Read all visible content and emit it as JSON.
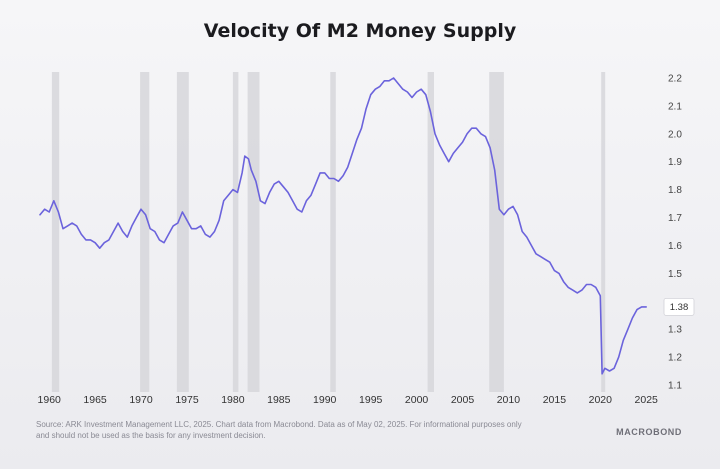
{
  "chart_data": {
    "type": "line",
    "title": "Velocity Of M2 Money Supply",
    "xlabel": "",
    "ylabel": "",
    "xlim": [
      1959,
      2026.5
    ],
    "ylim": [
      1.1,
      2.2
    ],
    "grid": false,
    "x_ticks": [
      1960,
      1965,
      1970,
      1975,
      1980,
      1985,
      1990,
      1995,
      2000,
      2005,
      2010,
      2015,
      2020,
      2025
    ],
    "y_ticks": [
      1.1,
      1.2,
      1.3,
      1.38,
      1.4,
      1.5,
      1.6,
      1.7,
      1.8,
      1.9,
      2.0,
      2.1,
      2.2
    ],
    "y_tick_labels": [
      "1.1",
      "1.2",
      "1.3",
      "1.4",
      "1.5",
      "1.6",
      "1.7",
      "1.8",
      "1.9",
      "2.0",
      "2.1",
      "2.2"
    ],
    "last_value_label": "1.38",
    "recessions": [
      [
        1960.3,
        1961.1
      ],
      [
        1969.9,
        1970.9
      ],
      [
        1973.9,
        1975.2
      ],
      [
        1980.0,
        1980.6
      ],
      [
        1981.6,
        1982.9
      ],
      [
        1990.6,
        1991.2
      ],
      [
        2001.2,
        2001.9
      ],
      [
        2007.9,
        2009.5
      ],
      [
        2020.1,
        2020.4
      ]
    ],
    "series": [
      {
        "name": "Velocity of M2",
        "color": "#6b63dc",
        "points": [
          [
            1959.0,
            1.71
          ],
          [
            1959.5,
            1.73
          ],
          [
            1960.0,
            1.72
          ],
          [
            1960.5,
            1.76
          ],
          [
            1961.0,
            1.72
          ],
          [
            1961.5,
            1.66
          ],
          [
            1962.0,
            1.67
          ],
          [
            1962.5,
            1.68
          ],
          [
            1963.0,
            1.67
          ],
          [
            1963.5,
            1.64
          ],
          [
            1964.0,
            1.62
          ],
          [
            1964.5,
            1.62
          ],
          [
            1965.0,
            1.61
          ],
          [
            1965.5,
            1.59
          ],
          [
            1966.0,
            1.61
          ],
          [
            1966.5,
            1.62
          ],
          [
            1967.0,
            1.65
          ],
          [
            1967.5,
            1.68
          ],
          [
            1968.0,
            1.65
          ],
          [
            1968.5,
            1.63
          ],
          [
            1969.0,
            1.67
          ],
          [
            1969.5,
            1.7
          ],
          [
            1970.0,
            1.73
          ],
          [
            1970.5,
            1.71
          ],
          [
            1971.0,
            1.66
          ],
          [
            1971.5,
            1.65
          ],
          [
            1972.0,
            1.62
          ],
          [
            1972.5,
            1.61
          ],
          [
            1973.0,
            1.64
          ],
          [
            1973.5,
            1.67
          ],
          [
            1974.0,
            1.68
          ],
          [
            1974.5,
            1.72
          ],
          [
            1975.0,
            1.69
          ],
          [
            1975.5,
            1.66
          ],
          [
            1976.0,
            1.66
          ],
          [
            1976.5,
            1.67
          ],
          [
            1977.0,
            1.64
          ],
          [
            1977.5,
            1.63
          ],
          [
            1978.0,
            1.65
          ],
          [
            1978.5,
            1.69
          ],
          [
            1979.0,
            1.76
          ],
          [
            1979.5,
            1.78
          ],
          [
            1980.0,
            1.8
          ],
          [
            1980.5,
            1.79
          ],
          [
            1981.0,
            1.86
          ],
          [
            1981.3,
            1.92
          ],
          [
            1981.7,
            1.91
          ],
          [
            1982.0,
            1.87
          ],
          [
            1982.5,
            1.83
          ],
          [
            1983.0,
            1.76
          ],
          [
            1983.5,
            1.75
          ],
          [
            1984.0,
            1.79
          ],
          [
            1984.5,
            1.82
          ],
          [
            1985.0,
            1.83
          ],
          [
            1985.5,
            1.81
          ],
          [
            1986.0,
            1.79
          ],
          [
            1986.5,
            1.76
          ],
          [
            1987.0,
            1.73
          ],
          [
            1987.5,
            1.72
          ],
          [
            1988.0,
            1.76
          ],
          [
            1988.5,
            1.78
          ],
          [
            1989.0,
            1.82
          ],
          [
            1989.5,
            1.86
          ],
          [
            1990.0,
            1.86
          ],
          [
            1990.5,
            1.84
          ],
          [
            1991.0,
            1.84
          ],
          [
            1991.5,
            1.83
          ],
          [
            1992.0,
            1.85
          ],
          [
            1992.5,
            1.88
          ],
          [
            1993.0,
            1.93
          ],
          [
            1993.5,
            1.98
          ],
          [
            1994.0,
            2.02
          ],
          [
            1994.5,
            2.09
          ],
          [
            1995.0,
            2.14
          ],
          [
            1995.5,
            2.16
          ],
          [
            1996.0,
            2.17
          ],
          [
            1996.5,
            2.19
          ],
          [
            1997.0,
            2.19
          ],
          [
            1997.5,
            2.2
          ],
          [
            1998.0,
            2.18
          ],
          [
            1998.5,
            2.16
          ],
          [
            1999.0,
            2.15
          ],
          [
            1999.5,
            2.13
          ],
          [
            2000.0,
            2.15
          ],
          [
            2000.5,
            2.16
          ],
          [
            2001.0,
            2.14
          ],
          [
            2001.5,
            2.08
          ],
          [
            2002.0,
            2.0
          ],
          [
            2002.5,
            1.96
          ],
          [
            2003.0,
            1.93
          ],
          [
            2003.5,
            1.9
          ],
          [
            2004.0,
            1.93
          ],
          [
            2004.5,
            1.95
          ],
          [
            2005.0,
            1.97
          ],
          [
            2005.5,
            2.0
          ],
          [
            2006.0,
            2.02
          ],
          [
            2006.5,
            2.02
          ],
          [
            2007.0,
            2.0
          ],
          [
            2007.5,
            1.99
          ],
          [
            2008.0,
            1.95
          ],
          [
            2008.5,
            1.87
          ],
          [
            2009.0,
            1.73
          ],
          [
            2009.5,
            1.71
          ],
          [
            2010.0,
            1.73
          ],
          [
            2010.5,
            1.74
          ],
          [
            2011.0,
            1.71
          ],
          [
            2011.5,
            1.65
          ],
          [
            2012.0,
            1.63
          ],
          [
            2012.5,
            1.6
          ],
          [
            2013.0,
            1.57
          ],
          [
            2013.5,
            1.56
          ],
          [
            2014.0,
            1.55
          ],
          [
            2014.5,
            1.54
          ],
          [
            2015.0,
            1.51
          ],
          [
            2015.5,
            1.5
          ],
          [
            2016.0,
            1.47
          ],
          [
            2016.5,
            1.45
          ],
          [
            2017.0,
            1.44
          ],
          [
            2017.5,
            1.43
          ],
          [
            2018.0,
            1.44
          ],
          [
            2018.5,
            1.46
          ],
          [
            2019.0,
            1.46
          ],
          [
            2019.5,
            1.45
          ],
          [
            2020.0,
            1.42
          ],
          [
            2020.2,
            1.14
          ],
          [
            2020.5,
            1.16
          ],
          [
            2021.0,
            1.15
          ],
          [
            2021.5,
            1.16
          ],
          [
            2022.0,
            1.2
          ],
          [
            2022.5,
            1.26
          ],
          [
            2023.0,
            1.3
          ],
          [
            2023.5,
            1.34
          ],
          [
            2024.0,
            1.37
          ],
          [
            2024.5,
            1.38
          ],
          [
            2025.0,
            1.38
          ]
        ]
      }
    ]
  },
  "footer": {
    "source_line1": "Source: ARK Investment Management LLC, 2025. Chart data from Macrobond. Data as of May 02, 2025. For informational purposes only",
    "source_line2": "and should not be used as the basis for any investment decision.",
    "brand": "MACROBOND"
  }
}
